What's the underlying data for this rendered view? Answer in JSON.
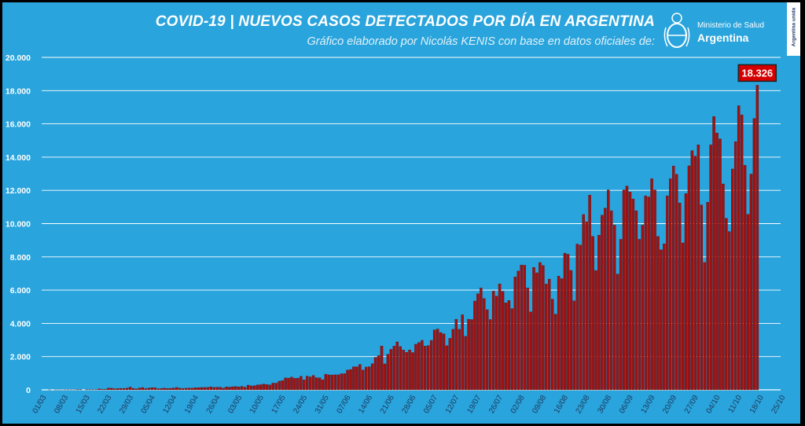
{
  "header": {
    "title": "COVID-19  |  NUEVOS CASOS DETECTADOS POR DÍA EN ARGENTINA",
    "subtitle": "Gráfico elaborado por Nicolás KENIS con base en datos oficiales de:",
    "ministry_line1": "Ministerio de Salud",
    "ministry_line2": "Argentina",
    "side_badge": "Argentina unida"
  },
  "colors": {
    "background": "#2aa4dc",
    "bar": "#9e1212",
    "bar_edge": "#5a0606",
    "gridline": "#ffffff",
    "highlight_box": "#d40000"
  },
  "chart_data": {
    "type": "bar",
    "title": "COVID-19 | NUEVOS CASOS DETECTADOS POR DÍA EN ARGENTINA",
    "xlabel": "",
    "ylabel": "",
    "ylim": [
      0,
      20000
    ],
    "yticks": [
      0,
      2000,
      4000,
      6000,
      8000,
      10000,
      12000,
      14000,
      16000,
      18000,
      20000
    ],
    "ytick_labels": [
      "0",
      "2.000",
      "4.000",
      "6.000",
      "8.000",
      "10.000",
      "12.000",
      "14.000",
      "16.000",
      "18.000",
      "20.000"
    ],
    "xtick_labels": [
      "01/03",
      "08/03",
      "15/03",
      "22/03",
      "29/03",
      "05/04",
      "12/04",
      "19/04",
      "26/04",
      "03/05",
      "10/05",
      "17/05",
      "24/05",
      "31/05",
      "07/06",
      "14/06",
      "21/06",
      "28/06",
      "05/07",
      "12/07",
      "19/07",
      "26/07",
      "02/08",
      "09/08",
      "16/08",
      "23/08",
      "30/08",
      "06/09",
      "13/09",
      "20/09",
      "27/09",
      "04/10",
      "11/10",
      "18/10",
      "25/10"
    ],
    "x_start": "01/03",
    "grid": true,
    "highlight_label": "18.326",
    "values": [
      0,
      0,
      2,
      0,
      2,
      1,
      1,
      3,
      5,
      4,
      3,
      12,
      12,
      0,
      8,
      14,
      9,
      14,
      63,
      30,
      34,
      111,
      98,
      66,
      87,
      91,
      86,
      109,
      167,
      88,
      60,
      113,
      141,
      75,
      112,
      131,
      131,
      68,
      81,
      105,
      82,
      91,
      112,
      144,
      101,
      86,
      98,
      111,
      101,
      126,
      135,
      143,
      144,
      148,
      183,
      146,
      160,
      162,
      103,
      181,
      165,
      188,
      197,
      182,
      211,
      164,
      285,
      240,
      251,
      300,
      309,
      350,
      322,
      300,
      405,
      404,
      521,
      556,
      718,
      707,
      766,
      695,
      704,
      812,
      601,
      827,
      780,
      868,
      732,
      722,
      607,
      943,
      901,
      896,
      908,
      904,
      969,
      976,
      1191,
      1226,
      1391,
      1391,
      1531,
      1192,
      1374,
      1393,
      1575,
      1958,
      2060,
      2635,
      1563,
      2146,
      2439,
      2632,
      2886,
      2606,
      2401,
      2262,
      2401,
      2245,
      2744,
      2845,
      2979,
      2632,
      2667,
      2979,
      3604,
      3663,
      3449,
      3367,
      2657,
      3099,
      3645,
      4250,
      3645,
      4518,
      3223,
      4250,
      4231,
      5344,
      5782,
      6127,
      5493,
      4824,
      4231,
      5939,
      5641,
      6377,
      5929,
      5241,
      5376,
      4890,
      6792,
      7147,
      7513,
      7498,
      6134,
      4688,
      7369,
      7043,
      7663,
      7482,
      6365,
      6663,
      5458,
      4557,
      6840,
      6693,
      8225,
      8159,
      7187,
      5352,
      8771,
      8713,
      10550,
      10104,
      11717,
      9230,
      7183,
      9309,
      10504,
      10933,
      12027,
      10776,
      9908,
      6968,
      9056,
      12027,
      12259,
      11905,
      11484,
      10776,
      9056,
      9908,
      11674,
      11607,
      12701,
      12027,
      9230,
      8431,
      8782,
      11674,
      12701,
      13467,
      12969,
      11243,
      8841,
      11807,
      13477,
      14392,
      14062,
      14740,
      11129,
      7664,
      11293,
      14740,
      16447,
      15454,
      15099,
      12388,
      10318,
      9524,
      13289,
      14932,
      17096,
      16546,
      13510,
      10561,
      12982,
      16325,
      18326
    ],
    "notes": ""
  }
}
